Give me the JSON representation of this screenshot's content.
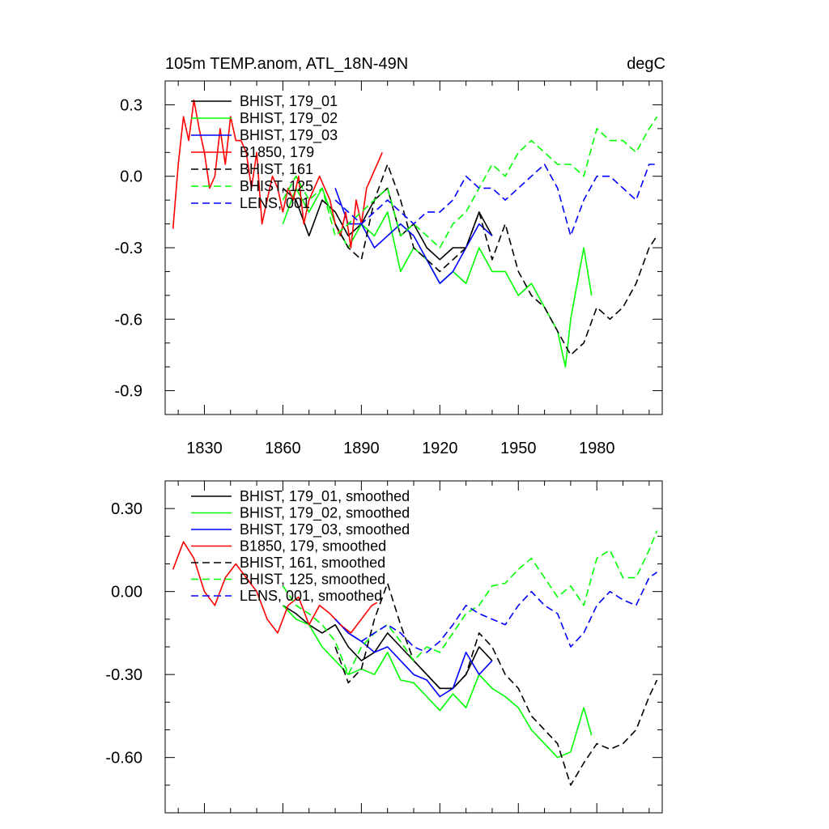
{
  "chart_data": [
    {
      "type": "line",
      "title": "105m TEMP.anom, ATL_18N-49N",
      "units": "degC",
      "ylim": [
        -1.0,
        0.4
      ],
      "xlim": [
        1815,
        2005
      ],
      "yticks": [
        0.3,
        0.0,
        -0.3,
        -0.6,
        -0.9
      ],
      "ytick_labels": [
        "0.3",
        "0.0",
        "-0.3",
        "-0.6",
        "-0.9"
      ],
      "xticks": [
        1830,
        1860,
        1890,
        1920,
        1950,
        1980
      ],
      "xtick_labels": [
        "1830",
        "1860",
        "1890",
        "1920",
        "1950",
        "1980"
      ],
      "legend_position": "top-left",
      "series": [
        {
          "name": "BHIST, 179_01",
          "color": "#000000",
          "dash": false,
          "x": [
            1860,
            1865,
            1870,
            1875,
            1880,
            1885,
            1890,
            1895,
            1900,
            1905,
            1910,
            1915,
            1920,
            1925,
            1930,
            1935,
            1940
          ],
          "y": [
            -0.05,
            -0.1,
            -0.25,
            -0.1,
            -0.15,
            -0.25,
            -0.2,
            -0.1,
            -0.05,
            -0.25,
            -0.2,
            -0.3,
            -0.35,
            -0.3,
            -0.3,
            -0.15,
            -0.25
          ]
        },
        {
          "name": "BHIST, 179_02",
          "color": "#00ff00",
          "dash": false,
          "x": [
            1860,
            1865,
            1870,
            1875,
            1880,
            1885,
            1890,
            1895,
            1900,
            1905,
            1910,
            1915,
            1920,
            1925,
            1930,
            1935,
            1940,
            1945,
            1950,
            1955,
            1960,
            1965,
            1968,
            1970,
            1975,
            1978
          ],
          "y": [
            -0.2,
            -0.05,
            -0.15,
            -0.05,
            -0.2,
            -0.3,
            -0.2,
            -0.25,
            -0.15,
            -0.4,
            -0.3,
            -0.35,
            -0.45,
            -0.4,
            -0.45,
            -0.3,
            -0.4,
            -0.4,
            -0.5,
            -0.45,
            -0.55,
            -0.65,
            -0.8,
            -0.6,
            -0.3,
            -0.5
          ]
        },
        {
          "name": "BHIST, 179_03",
          "color": "#0000ff",
          "dash": false,
          "x": [
            1880,
            1885,
            1890,
            1895,
            1900,
            1905,
            1910,
            1915,
            1920,
            1925,
            1930,
            1935,
            1940
          ],
          "y": [
            -0.05,
            -0.2,
            -0.2,
            -0.3,
            -0.25,
            -0.2,
            -0.25,
            -0.35,
            -0.45,
            -0.4,
            -0.3,
            -0.2,
            -0.25
          ]
        },
        {
          "name": "B1850, 179",
          "color": "#ff0000",
          "dash": false,
          "x": [
            1818,
            1820,
            1822,
            1824,
            1826,
            1828,
            1830,
            1832,
            1834,
            1836,
            1838,
            1840,
            1842,
            1844,
            1846,
            1848,
            1850,
            1852,
            1854,
            1856,
            1858,
            1860,
            1862,
            1864,
            1866,
            1868,
            1870,
            1872,
            1874,
            1876,
            1878,
            1880,
            1882,
            1884,
            1886,
            1888,
            1890,
            1892,
            1894,
            1896,
            1898
          ],
          "y": [
            -0.22,
            0.05,
            0.25,
            0.15,
            0.32,
            0.2,
            0.1,
            -0.05,
            0.0,
            0.2,
            0.05,
            0.25,
            0.15,
            0.15,
            0.1,
            -0.05,
            0.1,
            -0.2,
            -0.1,
            0.0,
            -0.05,
            -0.15,
            -0.05,
            -0.1,
            0.0,
            -0.2,
            -0.1,
            -0.05,
            0.0,
            -0.05,
            -0.1,
            -0.2,
            -0.25,
            -0.15,
            -0.3,
            -0.1,
            -0.2,
            -0.05,
            0.0,
            0.05,
            0.1
          ]
        },
        {
          "name": "BHIST, 161",
          "color": "#000000",
          "dash": true,
          "x": [
            1880,
            1885,
            1890,
            1895,
            1900,
            1905,
            1910,
            1915,
            1920,
            1925,
            1930,
            1935,
            1940,
            1945,
            1950,
            1955,
            1960,
            1965,
            1970,
            1975,
            1980,
            1985,
            1990,
            1995,
            2000,
            2003
          ],
          "y": [
            -0.2,
            -0.3,
            -0.35,
            -0.1,
            0.05,
            -0.1,
            -0.3,
            -0.35,
            -0.4,
            -0.35,
            -0.3,
            -0.15,
            -0.35,
            -0.2,
            -0.4,
            -0.5,
            -0.55,
            -0.65,
            -0.75,
            -0.7,
            -0.55,
            -0.6,
            -0.55,
            -0.45,
            -0.3,
            -0.25
          ]
        },
        {
          "name": "BHIST, 125",
          "color": "#00ff00",
          "dash": true,
          "x": [
            1860,
            1865,
            1870,
            1875,
            1880,
            1885,
            1890,
            1895,
            1900,
            1905,
            1910,
            1915,
            1920,
            1925,
            1930,
            1935,
            1940,
            1945,
            1950,
            1955,
            1960,
            1965,
            1970,
            1975,
            1980,
            1985,
            1990,
            1995,
            2000,
            2003
          ],
          "y": [
            -0.1,
            0.0,
            -0.1,
            -0.05,
            -0.25,
            -0.2,
            -0.15,
            -0.1,
            -0.05,
            -0.25,
            -0.2,
            -0.25,
            -0.3,
            -0.2,
            -0.15,
            -0.05,
            0.05,
            0.0,
            0.1,
            0.15,
            0.1,
            0.05,
            0.05,
            0.0,
            0.2,
            0.15,
            0.15,
            0.1,
            0.2,
            0.25
          ]
        },
        {
          "name": "LENS, 001",
          "color": "#0000ff",
          "dash": true,
          "x": [
            1880,
            1885,
            1890,
            1895,
            1900,
            1905,
            1910,
            1915,
            1920,
            1925,
            1930,
            1935,
            1940,
            1945,
            1950,
            1955,
            1960,
            1965,
            1970,
            1975,
            1980,
            1985,
            1990,
            1995,
            2000,
            2003
          ],
          "y": [
            -0.1,
            -0.15,
            -0.2,
            -0.15,
            -0.1,
            -0.15,
            -0.2,
            -0.15,
            -0.15,
            -0.1,
            0.0,
            -0.05,
            -0.05,
            -0.1,
            -0.05,
            0.0,
            0.05,
            -0.05,
            -0.25,
            -0.1,
            0.0,
            0.0,
            -0.05,
            -0.1,
            0.05,
            0.05
          ]
        }
      ]
    },
    {
      "type": "line",
      "title": "",
      "ylim": [
        -0.8,
        0.4
      ],
      "xlim": [
        1815,
        2005
      ],
      "yticks": [
        0.3,
        0.0,
        -0.3,
        -0.6
      ],
      "ytick_labels": [
        "0.30",
        "0.00",
        "-0.30",
        "-0.60"
      ],
      "xticks": [
        1830,
        1860,
        1890,
        1920,
        1950,
        1980
      ],
      "xtick_labels": [],
      "legend_position": "top-left",
      "series": [
        {
          "name": "BHIST, 179_01, smoothed",
          "color": "#000000",
          "dash": false,
          "x": [
            1860,
            1865,
            1870,
            1875,
            1880,
            1885,
            1890,
            1895,
            1900,
            1905,
            1910,
            1915,
            1920,
            1925,
            1930,
            1935,
            1940
          ],
          "y": [
            -0.05,
            -0.08,
            -0.12,
            -0.15,
            -0.12,
            -0.2,
            -0.25,
            -0.22,
            -0.15,
            -0.2,
            -0.25,
            -0.3,
            -0.35,
            -0.35,
            -0.3,
            -0.2,
            -0.25
          ]
        },
        {
          "name": "BHIST, 179_02, smoothed",
          "color": "#00ff00",
          "dash": false,
          "x": [
            1860,
            1865,
            1870,
            1875,
            1880,
            1885,
            1890,
            1895,
            1900,
            1905,
            1910,
            1915,
            1920,
            1925,
            1930,
            1935,
            1940,
            1945,
            1950,
            1955,
            1960,
            1965,
            1970,
            1975,
            1978
          ],
          "y": [
            -0.05,
            -0.1,
            -0.12,
            -0.2,
            -0.25,
            -0.3,
            -0.28,
            -0.3,
            -0.22,
            -0.32,
            -0.33,
            -0.38,
            -0.43,
            -0.37,
            -0.42,
            -0.3,
            -0.35,
            -0.38,
            -0.42,
            -0.5,
            -0.55,
            -0.6,
            -0.58,
            -0.42,
            -0.52
          ]
        },
        {
          "name": "BHIST, 179_03, smoothed",
          "color": "#0000ff",
          "dash": false,
          "x": [
            1880,
            1885,
            1890,
            1895,
            1900,
            1905,
            1910,
            1915,
            1920,
            1925,
            1930,
            1935,
            1940
          ],
          "y": [
            -0.1,
            -0.15,
            -0.18,
            -0.22,
            -0.2,
            -0.25,
            -0.3,
            -0.32,
            -0.38,
            -0.35,
            -0.22,
            -0.3,
            -0.25
          ]
        },
        {
          "name": "B1850, 179, smoothed",
          "color": "#ff0000",
          "dash": false,
          "x": [
            1818,
            1822,
            1826,
            1830,
            1834,
            1838,
            1842,
            1846,
            1850,
            1854,
            1858,
            1862,
            1866,
            1870,
            1874,
            1878,
            1882,
            1886,
            1890,
            1894,
            1896
          ],
          "y": [
            0.08,
            0.18,
            0.12,
            0.0,
            -0.05,
            0.05,
            0.1,
            0.05,
            0.0,
            -0.1,
            -0.15,
            -0.05,
            -0.02,
            -0.12,
            -0.05,
            -0.08,
            -0.12,
            -0.15,
            -0.1,
            -0.05,
            -0.04
          ]
        },
        {
          "name": "BHIST, 161, smoothed",
          "color": "#000000",
          "dash": true,
          "x": [
            1880,
            1885,
            1890,
            1895,
            1900,
            1905,
            1910,
            1915,
            1920,
            1925,
            1930,
            1935,
            1940,
            1945,
            1950,
            1955,
            1960,
            1965,
            1970,
            1975,
            1980,
            1985,
            1990,
            1995,
            2000,
            2003
          ],
          "y": [
            -0.2,
            -0.33,
            -0.28,
            -0.1,
            0.03,
            -0.12,
            -0.25,
            -0.3,
            -0.35,
            -0.35,
            -0.3,
            -0.15,
            -0.2,
            -0.3,
            -0.35,
            -0.45,
            -0.5,
            -0.55,
            -0.7,
            -0.62,
            -0.55,
            -0.57,
            -0.55,
            -0.5,
            -0.38,
            -0.32
          ]
        },
        {
          "name": "BHIST, 125, smoothed",
          "color": "#00ff00",
          "dash": true,
          "x": [
            1860,
            1865,
            1870,
            1875,
            1880,
            1885,
            1890,
            1895,
            1900,
            1905,
            1910,
            1915,
            1920,
            1925,
            1930,
            1935,
            1940,
            1945,
            1950,
            1955,
            1960,
            1965,
            1970,
            1975,
            1980,
            1985,
            1990,
            1995,
            2000,
            2003
          ],
          "y": [
            0.02,
            -0.05,
            -0.08,
            -0.12,
            -0.18,
            -0.3,
            -0.2,
            -0.15,
            -0.12,
            -0.18,
            -0.25,
            -0.2,
            -0.22,
            -0.15,
            -0.08,
            -0.05,
            0.02,
            0.03,
            0.08,
            0.12,
            0.05,
            -0.02,
            0.02,
            -0.05,
            0.12,
            0.15,
            0.05,
            0.05,
            0.15,
            0.22
          ]
        },
        {
          "name": "LENS, 001, smoothed",
          "color": "#0000ff",
          "dash": true,
          "x": [
            1880,
            1885,
            1890,
            1895,
            1900,
            1905,
            1910,
            1915,
            1920,
            1925,
            1930,
            1935,
            1940,
            1945,
            1950,
            1955,
            1960,
            1965,
            1970,
            1975,
            1980,
            1985,
            1990,
            1995,
            2000,
            2003
          ],
          "y": [
            -0.1,
            -0.15,
            -0.18,
            -0.15,
            -0.12,
            -0.15,
            -0.2,
            -0.22,
            -0.18,
            -0.12,
            -0.05,
            -0.08,
            -0.1,
            -0.12,
            -0.05,
            0.0,
            -0.05,
            -0.08,
            -0.2,
            -0.15,
            -0.05,
            0.0,
            -0.03,
            -0.05,
            0.05,
            0.07
          ]
        }
      ]
    }
  ]
}
